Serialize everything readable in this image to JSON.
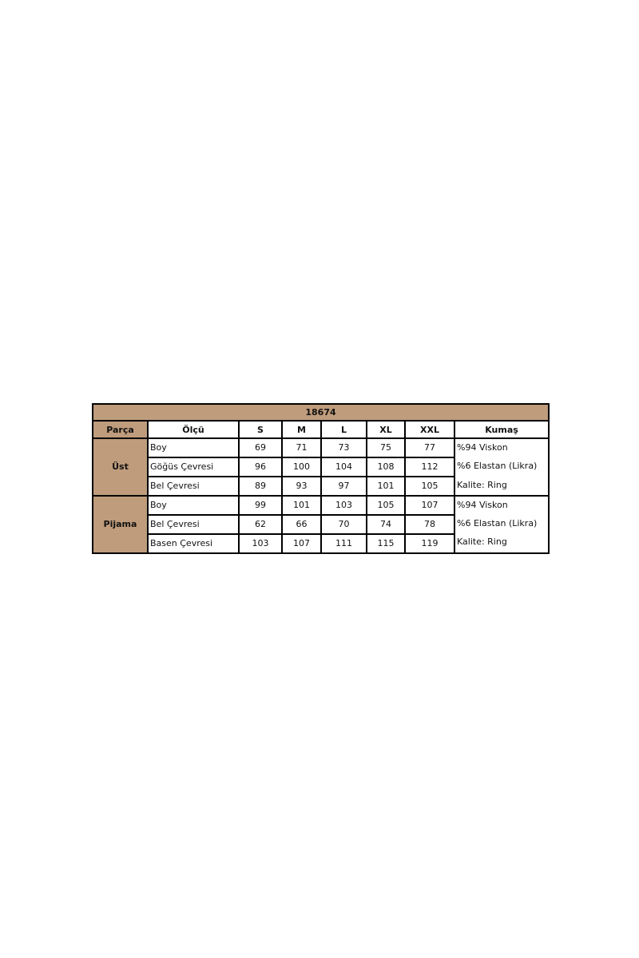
{
  "title": "18674",
  "headers": [
    "Parça",
    "Ölçü",
    "S",
    "M",
    "L",
    "XL",
    "XXL",
    "Kumaş"
  ],
  "groups": [
    {
      "name": "Üst",
      "rows": [
        {
          "olcu": "Boy",
          "values": [
            "69",
            "71",
            "73",
            "75",
            "77"
          ]
        },
        {
          "olcu": "Göğüs Çevresi",
          "values": [
            "96",
            "100",
            "104",
            "108",
            "112"
          ]
        },
        {
          "olcu": "Bel Çevresi",
          "values": [
            "89",
            "93",
            "97",
            "101",
            "105"
          ]
        }
      ],
      "kumas": [
        "%94 Viskon",
        "%6 Elastan (Likra)",
        "Kalite: Ring"
      ]
    },
    {
      "name": "Pijama",
      "rows": [
        {
          "olcu": "Boy",
          "values": [
            "99",
            "101",
            "103",
            "105",
            "107"
          ]
        },
        {
          "olcu": "Bel Çevresi",
          "values": [
            "62",
            "66",
            "70",
            "74",
            "78"
          ]
        },
        {
          "olcu": "Basen Çevresi",
          "values": [
            "103",
            "107",
            "111",
            "115",
            "119"
          ]
        }
      ],
      "kumas": [
        "%94 Viskon",
        "%6 Elastan (Likra)",
        "Kalite: Ring"
      ]
    }
  ],
  "colors": {
    "header_bg": "#bf9c7c",
    "border": "#000000"
  }
}
